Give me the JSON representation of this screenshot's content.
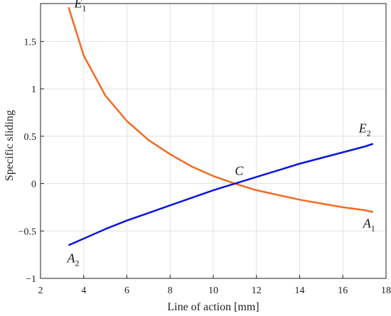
{
  "chart_data": {
    "type": "line",
    "xlabel": "Line of action [mm]",
    "ylabel": "Specific sliding",
    "xlim": [
      2,
      18
    ],
    "ylim": [
      -1,
      1.9
    ],
    "xticks": [
      2,
      4,
      6,
      8,
      10,
      12,
      14,
      16,
      18
    ],
    "yticks": [
      -1,
      -0.5,
      0,
      0.5,
      1,
      1.5
    ],
    "xtick_labels": [
      "2",
      "4",
      "6",
      "8",
      "10",
      "12",
      "14",
      "16",
      "18"
    ],
    "ytick_labels": [
      "−1",
      "−0.5",
      "0",
      "0.5",
      "1",
      "1.5"
    ],
    "grid": true,
    "series": [
      {
        "color": "#f26b21",
        "x": [
          3.3,
          4,
          5,
          6,
          7,
          8,
          9,
          10,
          11,
          12,
          13,
          14,
          15,
          16,
          17,
          17.4
        ],
        "y": [
          1.86,
          1.35,
          0.93,
          0.66,
          0.46,
          0.31,
          0.18,
          0.08,
          0.0,
          -0.07,
          -0.12,
          -0.17,
          -0.21,
          -0.25,
          -0.28,
          -0.3
        ]
      },
      {
        "color": "#0a16d6",
        "x": [
          3.3,
          4,
          5,
          6,
          7,
          8,
          9,
          10,
          11,
          12,
          13,
          14,
          15,
          16,
          17,
          17.4
        ],
        "y": [
          -0.65,
          -0.58,
          -0.48,
          -0.39,
          -0.31,
          -0.23,
          -0.15,
          -0.07,
          0.0,
          0.07,
          0.14,
          0.21,
          0.27,
          0.33,
          0.39,
          0.42
        ]
      }
    ],
    "annotations": [
      {
        "main": "E",
        "sub": "1",
        "x": 3.3,
        "y": 1.86,
        "dx": 8,
        "dy": 0
      },
      {
        "main": "A",
        "sub": "2",
        "x": 3.3,
        "y": -0.65,
        "dx": -2,
        "dy": 24
      },
      {
        "main": "C",
        "x": 11.0,
        "y": 0.0,
        "dx": 0,
        "dy": -12
      },
      {
        "main": "E",
        "sub": "2",
        "x": 17.4,
        "y": 0.42,
        "dx": -20,
        "dy": -16
      },
      {
        "main": "A",
        "sub": "1",
        "x": 17.4,
        "y": -0.3,
        "dx": -14,
        "dy": 22
      }
    ]
  }
}
